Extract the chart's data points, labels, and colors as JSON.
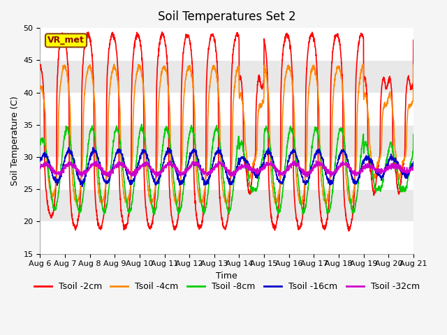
{
  "title": "Soil Temperatures Set 2",
  "xlabel": "Time",
  "ylabel": "Soil Temperature (C)",
  "ylim": [
    15,
    50
  ],
  "xlim": [
    0,
    360
  ],
  "x_ticks_labels": [
    "Aug 6",
    "Aug 7",
    "Aug 8",
    "Aug 9",
    "Aug 10",
    "Aug 11",
    "Aug 12",
    "Aug 13",
    "Aug 14",
    "Aug 15",
    "Aug 16",
    "Aug 17",
    "Aug 18",
    "Aug 19",
    "Aug 20",
    "Aug 21"
  ],
  "x_ticks_pos": [
    0,
    24,
    48,
    72,
    96,
    120,
    144,
    168,
    192,
    216,
    240,
    264,
    288,
    312,
    336,
    360
  ],
  "num_points": 2161,
  "mean_temps": [
    34.0,
    33.5,
    28.0,
    28.5,
    28.2
  ],
  "amplitudes": [
    15.0,
    10.5,
    6.5,
    2.5,
    0.8
  ],
  "phase_shifts_hours": [
    2.0,
    3.5,
    6.0,
    8.0,
    9.0
  ],
  "sharpness": [
    3.0,
    2.0,
    1.0,
    1.0,
    1.0
  ],
  "line_colors": [
    "#ff0000",
    "#ff8800",
    "#00cc00",
    "#0000cc",
    "#cc00cc"
  ],
  "line_labels": [
    "Tsoil -2cm",
    "Tsoil -4cm",
    "Tsoil -8cm",
    "Tsoil -16cm",
    "Tsoil -32cm"
  ],
  "line_widths": [
    1.2,
    1.2,
    1.2,
    1.2,
    1.2
  ],
  "bg_color": "#f5f5f5",
  "plot_bg_color_light": "#ffffff",
  "plot_bg_color_dark": "#e8e8e8",
  "vr_met_label": "VR_met",
  "vr_met_fg_color": "#8B0000",
  "vr_met_bg_color": "#ffff00",
  "vr_met_border_color": "#8B4513",
  "title_fontsize": 12,
  "label_fontsize": 9,
  "tick_fontsize": 8,
  "legend_fontsize": 9,
  "y_band_values": [
    15,
    20,
    25,
    30,
    35,
    40,
    45,
    50
  ],
  "cloudy_days": [
    8,
    13,
    14
  ],
  "cloudy_amplitude_factor": 0.55,
  "day0_amplitude_factor": 0.7
}
